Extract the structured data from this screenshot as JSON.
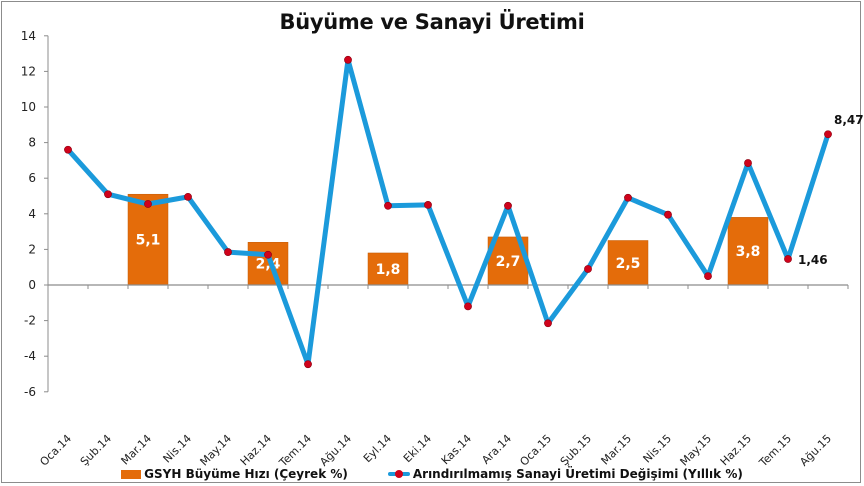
{
  "chart_data": {
    "type": "bar+line",
    "title": "Büyüme ve Sanayi Üretimi",
    "xlabel": "",
    "ylabel": "",
    "ylim": [
      -6,
      14
    ],
    "yticks": [
      14,
      12,
      10,
      8,
      6,
      4,
      2,
      0,
      -2,
      -4,
      -6
    ],
    "grid": false,
    "legend_position": "bottom",
    "categories": [
      "Oca.14",
      "Şub.14",
      "Mar.14",
      "Nis.14",
      "May.14",
      "Haz.14",
      "Tem.14",
      "Ağu.14",
      "Eyl.14",
      "Eki.14",
      "Kas.14",
      "Ara.14",
      "Oca.15",
      "Şub.15",
      "Mar.15",
      "Nis.15",
      "May.15",
      "Haz.15",
      "Tem.15",
      "Ağu.15"
    ],
    "series": [
      {
        "name": "GSYH Büyüme Hızı (Çeyrek %)",
        "type": "bar",
        "color": "#E46C0A",
        "values": [
          null,
          null,
          5.1,
          null,
          null,
          2.4,
          null,
          null,
          1.8,
          null,
          null,
          2.7,
          null,
          null,
          2.5,
          null,
          null,
          3.8,
          null,
          null
        ],
        "labels": [
          null,
          null,
          "5,1",
          null,
          null,
          "2,4",
          null,
          null,
          "1,8",
          null,
          null,
          "2,7",
          null,
          null,
          "2,5",
          null,
          null,
          "3,8",
          null,
          null
        ]
      },
      {
        "name": "Arındırılmamış Sanayi Üretimi Değişimi (Yıllık %)",
        "type": "line",
        "color": "#1B9ADB",
        "marker_color": "#D0021B",
        "values": [
          7.6,
          5.1,
          4.55,
          4.95,
          1.85,
          1.7,
          -4.45,
          12.65,
          4.45,
          4.5,
          -1.2,
          4.45,
          -2.15,
          0.9,
          4.9,
          3.95,
          0.5,
          6.85,
          1.46,
          8.47
        ],
        "labels": [
          null,
          null,
          null,
          null,
          null,
          null,
          null,
          null,
          null,
          null,
          null,
          null,
          null,
          null,
          null,
          null,
          null,
          null,
          "1,46",
          "8,47"
        ]
      }
    ]
  },
  "legend": {
    "bar_label": "GSYH Büyüme Hızı (Çeyrek %)",
    "line_label": "Arındırılmamış Sanayi Üretimi Değişimi (Yıllık %)"
  }
}
